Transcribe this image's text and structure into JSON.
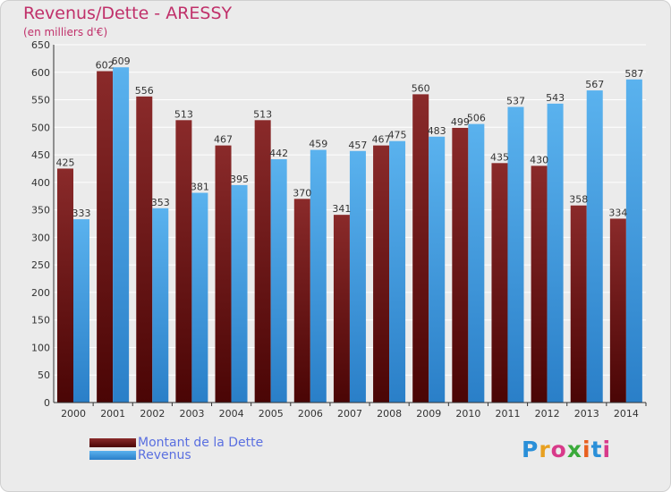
{
  "header": {
    "title": "Revenus/Dette - ARESSY",
    "subtitle": "(en milliers d'€)"
  },
  "legend": {
    "items": [
      {
        "label": "Montant de la Dette",
        "color": "#7a1a1a"
      },
      {
        "label": "Revenus",
        "color": "#4aa3e6"
      }
    ]
  },
  "logo": {
    "text": "Proxiti"
  },
  "colors": {
    "debt": "#7a1a1a",
    "revenue": "#4aa3e6",
    "grid": "#ffffff",
    "background": "#ebebeb"
  },
  "chart_data": {
    "type": "bar",
    "title": "Revenus/Dette - ARESSY",
    "subtitle": "(en milliers d'€)",
    "categories": [
      "2000",
      "2001",
      "2002",
      "2003",
      "2004",
      "2005",
      "2006",
      "2007",
      "2008",
      "2009",
      "2010",
      "2011",
      "2012",
      "2013",
      "2014"
    ],
    "series": [
      {
        "name": "Montant de la Dette",
        "values": [
          425,
          602,
          556,
          513,
          467,
          513,
          370,
          341,
          467,
          560,
          499,
          435,
          430,
          358,
          334
        ]
      },
      {
        "name": "Revenus",
        "values": [
          333,
          609,
          353,
          381,
          395,
          442,
          459,
          457,
          475,
          483,
          506,
          537,
          543,
          567,
          587
        ]
      }
    ],
    "ylim": [
      0,
      650
    ],
    "yticks": [
      0,
      50,
      100,
      150,
      200,
      250,
      300,
      350,
      400,
      450,
      500,
      550,
      600,
      650
    ],
    "grid": true,
    "legend_position": "bottom-left"
  }
}
